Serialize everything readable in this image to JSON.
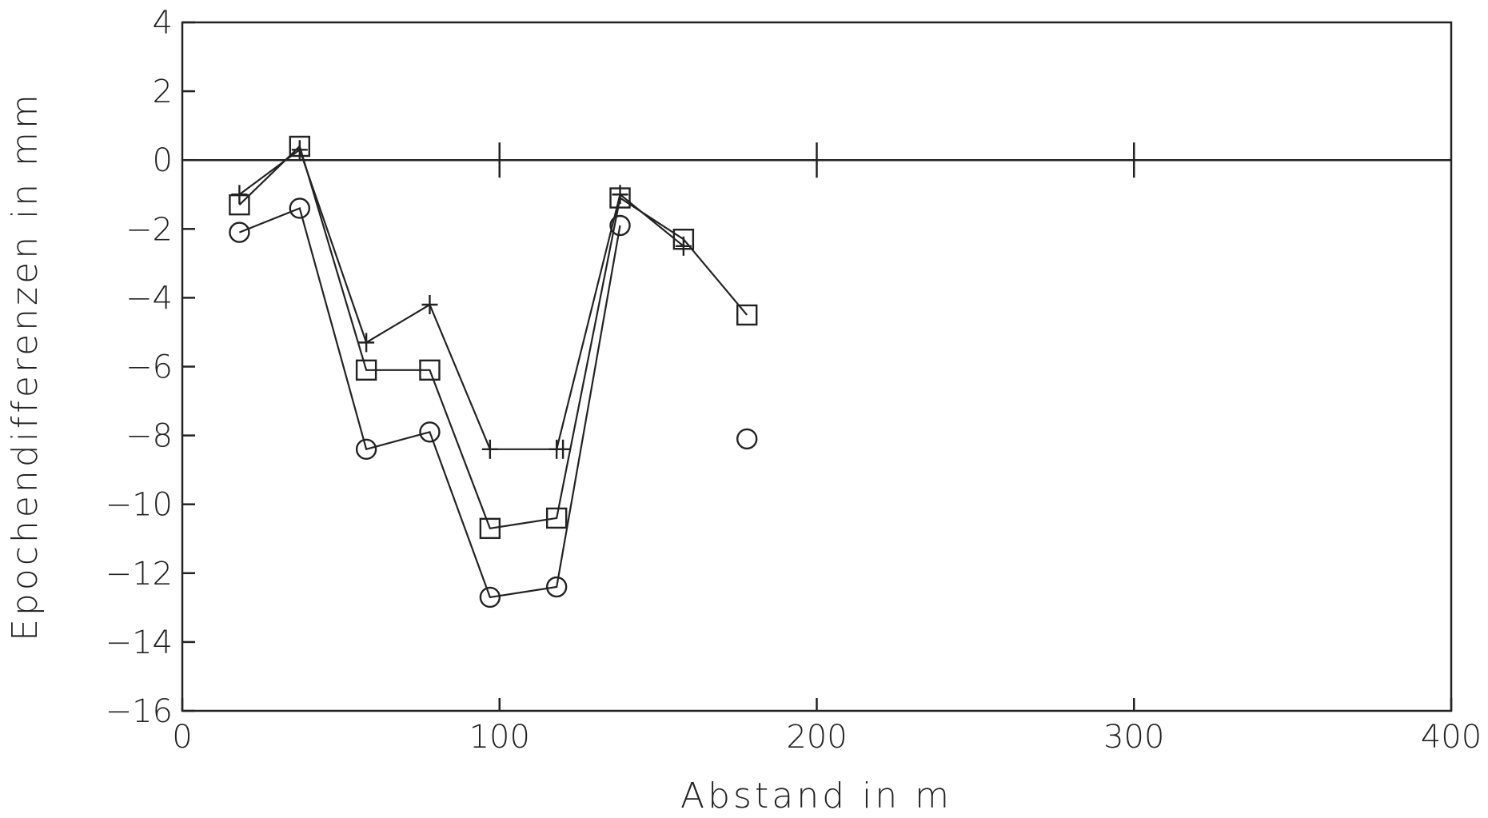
{
  "chart_data": {
    "type": "line",
    "title": "",
    "xlabel": "Abstand in m",
    "ylabel": "Epochendifferenzen in mm",
    "xlim": [
      0,
      400
    ],
    "ylim": [
      -16,
      4
    ],
    "x_ticks": [
      0,
      100,
      200,
      300,
      400
    ],
    "x_tick_labels": [
      "0",
      "100",
      "200",
      "300",
      "400"
    ],
    "y_ticks": [
      4,
      2,
      0,
      -2,
      -4,
      -6,
      -8,
      -10,
      -12,
      -14,
      -16
    ],
    "y_tick_labels": [
      "4",
      "2",
      "0",
      "−2",
      "−4",
      "−6",
      "−8",
      "−10",
      "−12",
      "−14",
      "−16"
    ],
    "zero_line": {
      "y": 0,
      "tick_marks_at_x": [
        100,
        200,
        300
      ]
    },
    "grid": false,
    "legend": "none",
    "series": [
      {
        "marker": "plus",
        "segments": [
          [
            [
              18,
              -1.0
            ],
            [
              37,
              0.3
            ],
            [
              58,
              -5.3
            ],
            [
              78,
              -4.2
            ],
            [
              97,
              -8.4
            ],
            [
              120,
              -8.4
            ]
          ],
          [
            [
              118,
              -8.4
            ],
            [
              138,
              -1.0
            ],
            [
              158,
              -2.5
            ]
          ]
        ]
      },
      {
        "marker": "square",
        "segments": [
          [
            [
              18,
              -1.3
            ],
            [
              37,
              0.4
            ],
            [
              58,
              -6.1
            ],
            [
              78,
              -6.1
            ],
            [
              97,
              -10.7
            ],
            [
              118,
              -10.4
            ],
            [
              138,
              -1.1
            ],
            [
              158,
              -2.3
            ],
            [
              178,
              -4.5
            ]
          ]
        ]
      },
      {
        "marker": "circle",
        "segments": [
          [
            [
              18,
              -2.1
            ],
            [
              37,
              -1.4
            ],
            [
              58,
              -8.4
            ],
            [
              78,
              -7.9
            ],
            [
              97,
              -12.7
            ],
            [
              118,
              -12.4
            ],
            [
              138,
              -1.9
            ]
          ],
          [
            [
              178,
              -8.1
            ]
          ]
        ]
      }
    ]
  }
}
